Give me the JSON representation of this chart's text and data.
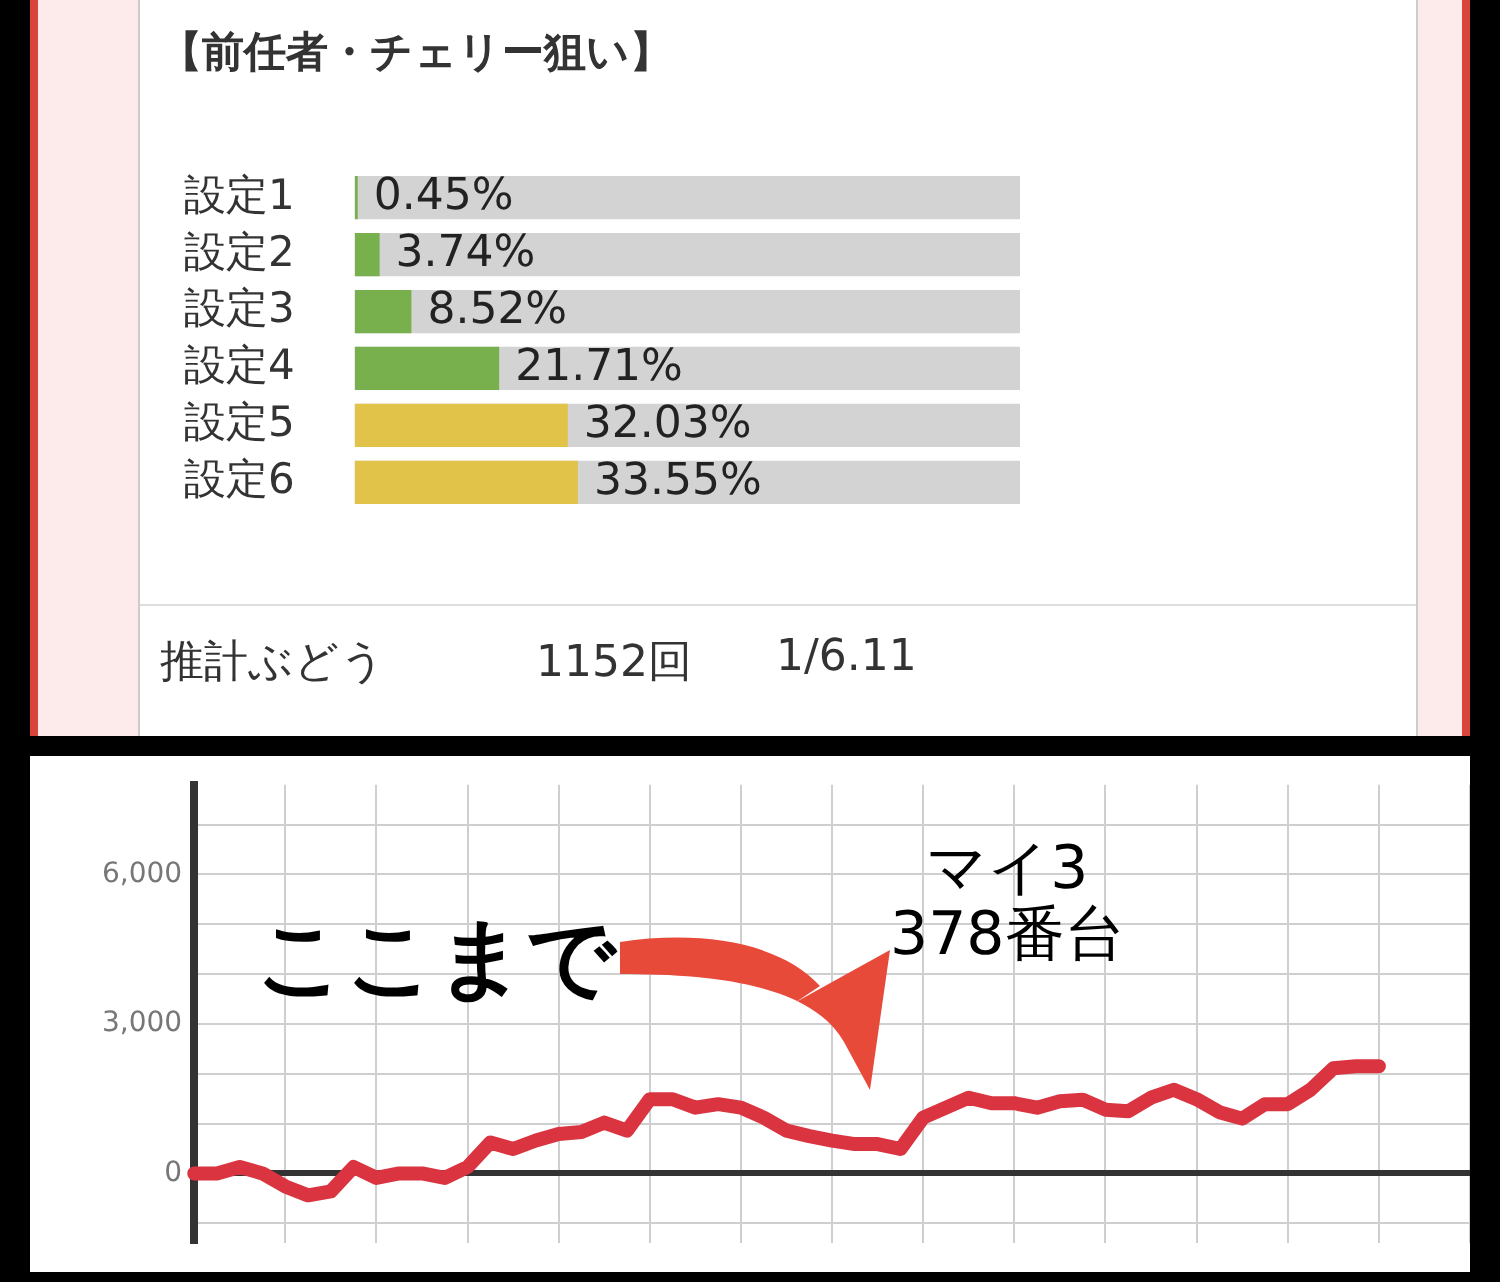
{
  "chart_data": [
    {
      "type": "bar",
      "orientation": "horizontal",
      "title": "【前任者・チェリー狙い】",
      "categories": [
        "設定1",
        "設定2",
        "設定3",
        "設定4",
        "設定5",
        "設定6"
      ],
      "values": [
        0.45,
        3.74,
        8.52,
        21.71,
        32.03,
        33.55
      ],
      "colors": [
        "#78b04e",
        "#78b04e",
        "#78b04e",
        "#78b04e",
        "#e2c34a",
        "#e2c34a"
      ],
      "value_labels": [
        "0.45%",
        "3.74%",
        "8.52%",
        "21.71%",
        "32.03%",
        "33.55%"
      ],
      "xlim": [
        0,
        100
      ],
      "tick_labels": "y",
      "annotations": [
        "推計ぶどう",
        "1152回",
        "1/6.11"
      ]
    },
    {
      "type": "line",
      "categories": [
        null,
        null,
        null,
        null,
        null,
        null,
        null,
        null,
        null,
        null,
        null,
        null,
        null,
        null,
        null,
        null,
        null,
        null,
        null,
        null,
        null,
        null,
        null,
        null,
        null,
        null,
        null,
        null,
        null,
        null,
        null,
        null,
        null,
        null,
        null,
        null,
        null,
        null,
        null,
        null,
        null,
        null,
        null,
        null,
        null,
        null,
        null,
        null,
        null,
        null,
        null,
        null,
        null,
        null,
        null,
        null,
        null
      ],
      "series": [
        {
          "color": "#d9343f",
          "values": [
            0,
            0,
            130,
            0,
            -260,
            -440,
            -360,
            130,
            -90,
            0,
            0,
            -90,
            130,
            620,
            490,
            660,
            790,
            830,
            1020,
            860,
            1490,
            1490,
            1320,
            1390,
            1320,
            1120,
            860,
            750,
            660,
            590,
            590,
            490,
            1120,
            1320,
            1520,
            1410,
            1410,
            1320,
            1450,
            1480,
            1280,
            1250,
            1520,
            1680,
            1490,
            1230,
            1100,
            1390,
            1390,
            1680,
            2110,
            2150,
            2150,
            null,
            null,
            null,
            null
          ]
        }
      ],
      "ylim": [
        -1400,
        7800
      ],
      "yticks": [
        {
          "value": -1000,
          "label": null
        },
        {
          "value": 0,
          "label": "0"
        },
        {
          "value": 1000,
          "label": null
        },
        {
          "value": 2000,
          "label": null
        },
        {
          "value": 3000,
          "label": "3,000"
        },
        {
          "value": 4000,
          "label": null
        },
        {
          "value": 5000,
          "label": null
        },
        {
          "value": 6000,
          "label": "6,000"
        },
        {
          "value": 7000,
          "label": null
        }
      ],
      "grid": true,
      "marker": "none",
      "tick_labels": "y",
      "annotations": [
        "ここまで",
        "マイ3\n378番台"
      ]
    }
  ]
}
